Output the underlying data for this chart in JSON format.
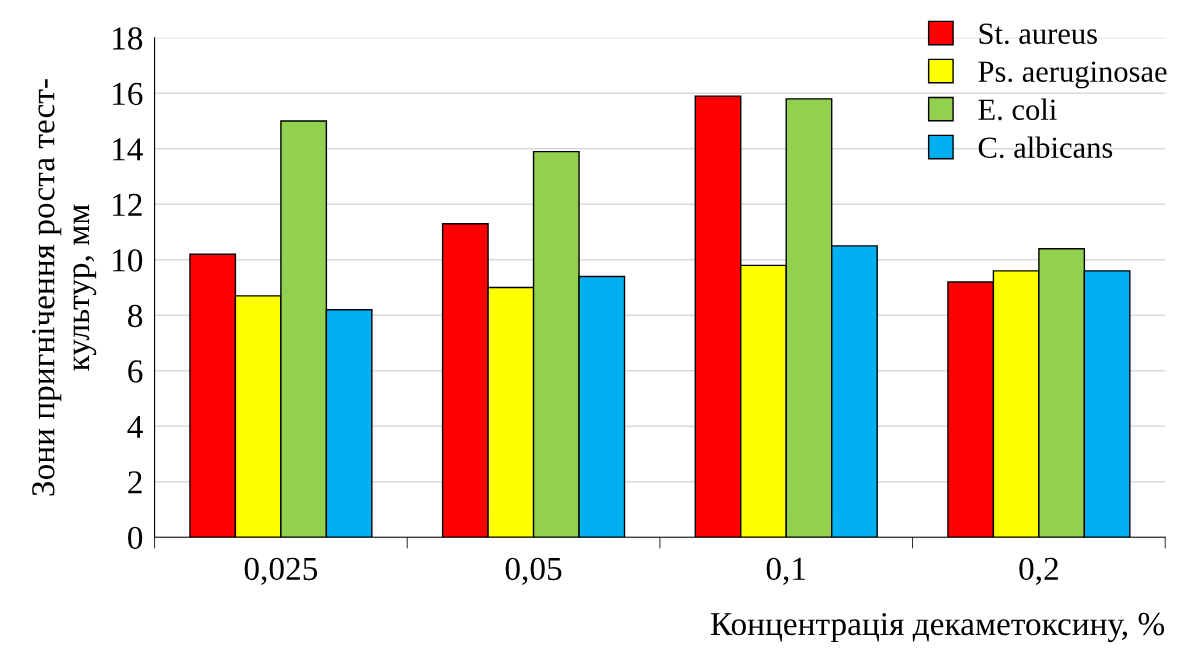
{
  "chart_data": {
    "type": "bar",
    "xlabel": "Концентрація декаметоксину, %",
    "ylabel": "Зони пригнічення роста тест-\nкультур, мм",
    "categories": [
      "0,025",
      "0,05",
      "0,1",
      "0,2"
    ],
    "series": [
      {
        "name": "St. aureus",
        "color": "#ff0000",
        "values": [
          10.2,
          11.3,
          15.9,
          9.2
        ]
      },
      {
        "name": "Ps. aeruginosae",
        "color": "#ffff00",
        "values": [
          8.7,
          9.0,
          9.8,
          9.6
        ]
      },
      {
        "name": "E. coli",
        "color": "#92d050",
        "values": [
          15.0,
          13.9,
          15.8,
          10.4
        ]
      },
      {
        "name": "C. albicans",
        "color": "#00b0f0",
        "values": [
          8.2,
          9.4,
          10.5,
          9.6
        ]
      }
    ],
    "ylim": [
      0,
      18
    ],
    "yticks": [
      0,
      2,
      4,
      6,
      8,
      10,
      12,
      14,
      16,
      18
    ],
    "grid": "y",
    "legend": "top right"
  }
}
